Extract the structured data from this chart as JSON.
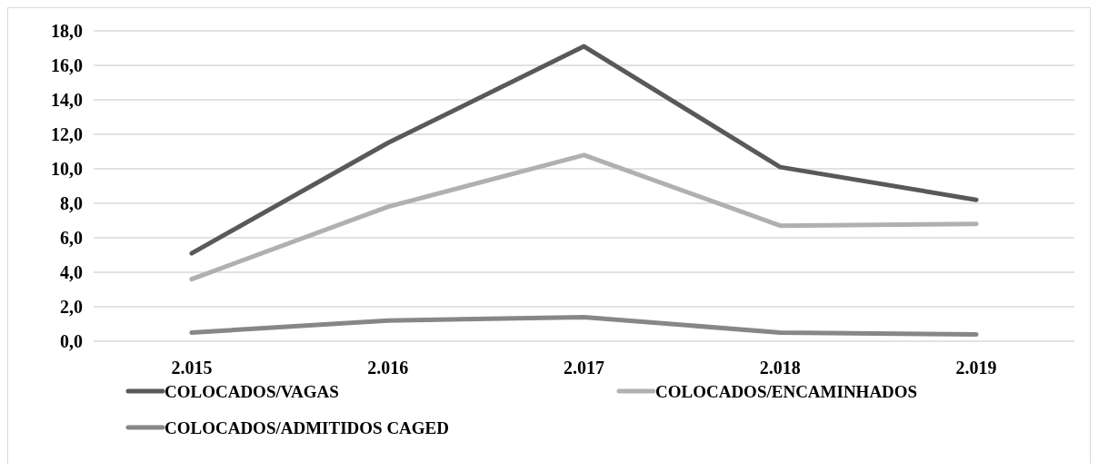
{
  "chart_data": {
    "type": "line",
    "categories": [
      "2.015",
      "2.016",
      "2.017",
      "2.018",
      "2.019"
    ],
    "series": [
      {
        "name": "COLOCADOS/VAGAS",
        "color": "#595959",
        "values": [
          5.1,
          11.5,
          17.1,
          10.1,
          8.2
        ]
      },
      {
        "name": "COLOCADOS/ENCAMINHADOS",
        "color": "#b0b0b0",
        "values": [
          3.6,
          7.8,
          10.8,
          6.7,
          6.8
        ]
      },
      {
        "name": "COLOCADOS/ADMITIDOS CAGED",
        "color": "#878787",
        "values": [
          0.5,
          1.2,
          1.4,
          0.5,
          0.4
        ]
      }
    ],
    "ylim": [
      0,
      18
    ],
    "yticks": [
      {
        "value": 0,
        "label": "0,0"
      },
      {
        "value": 2,
        "label": "2,0"
      },
      {
        "value": 4,
        "label": "4,0"
      },
      {
        "value": 6,
        "label": "6,0"
      },
      {
        "value": 8,
        "label": "8,0"
      },
      {
        "value": 10,
        "label": "10,0"
      },
      {
        "value": 12,
        "label": "12,0"
      },
      {
        "value": 14,
        "label": "14,0"
      },
      {
        "value": 16,
        "label": "16,0"
      },
      {
        "value": 18,
        "label": "18,0"
      }
    ],
    "grid": "y",
    "legend": "bottom",
    "marker": "none",
    "line_style": "solid"
  }
}
